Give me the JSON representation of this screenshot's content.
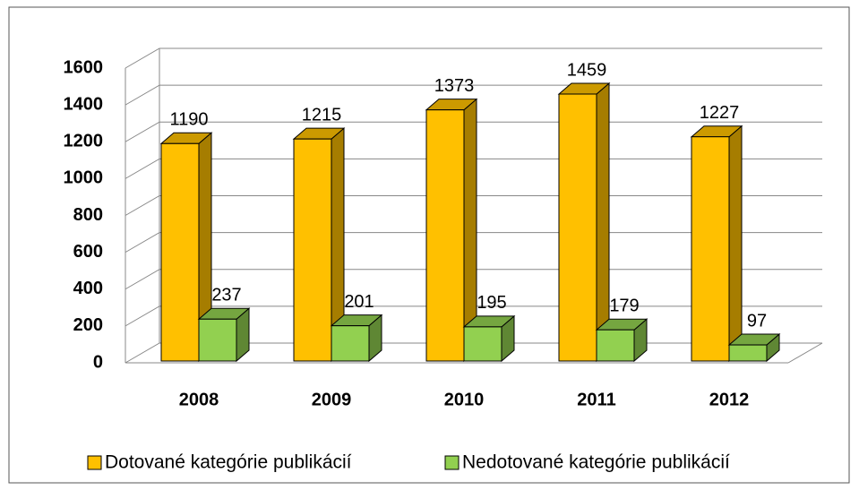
{
  "chart_data": {
    "type": "bar3d",
    "categories": [
      "2008",
      "2009",
      "2010",
      "2011",
      "2012"
    ],
    "series": [
      {
        "name": "Dotované kategórie publikácií",
        "color": "#FFC000",
        "values": [
          1190,
          1215,
          1373,
          1459,
          1227
        ]
      },
      {
        "name": "Nedotované kategórie publikácií",
        "color": "#92D050",
        "values": [
          237,
          201,
          195,
          179,
          97
        ]
      }
    ],
    "ylim": [
      0,
      1600
    ],
    "yticks": [
      0,
      200,
      400,
      600,
      800,
      1000,
      1200,
      1400,
      1600
    ],
    "grid": true,
    "legend": "bottom"
  }
}
